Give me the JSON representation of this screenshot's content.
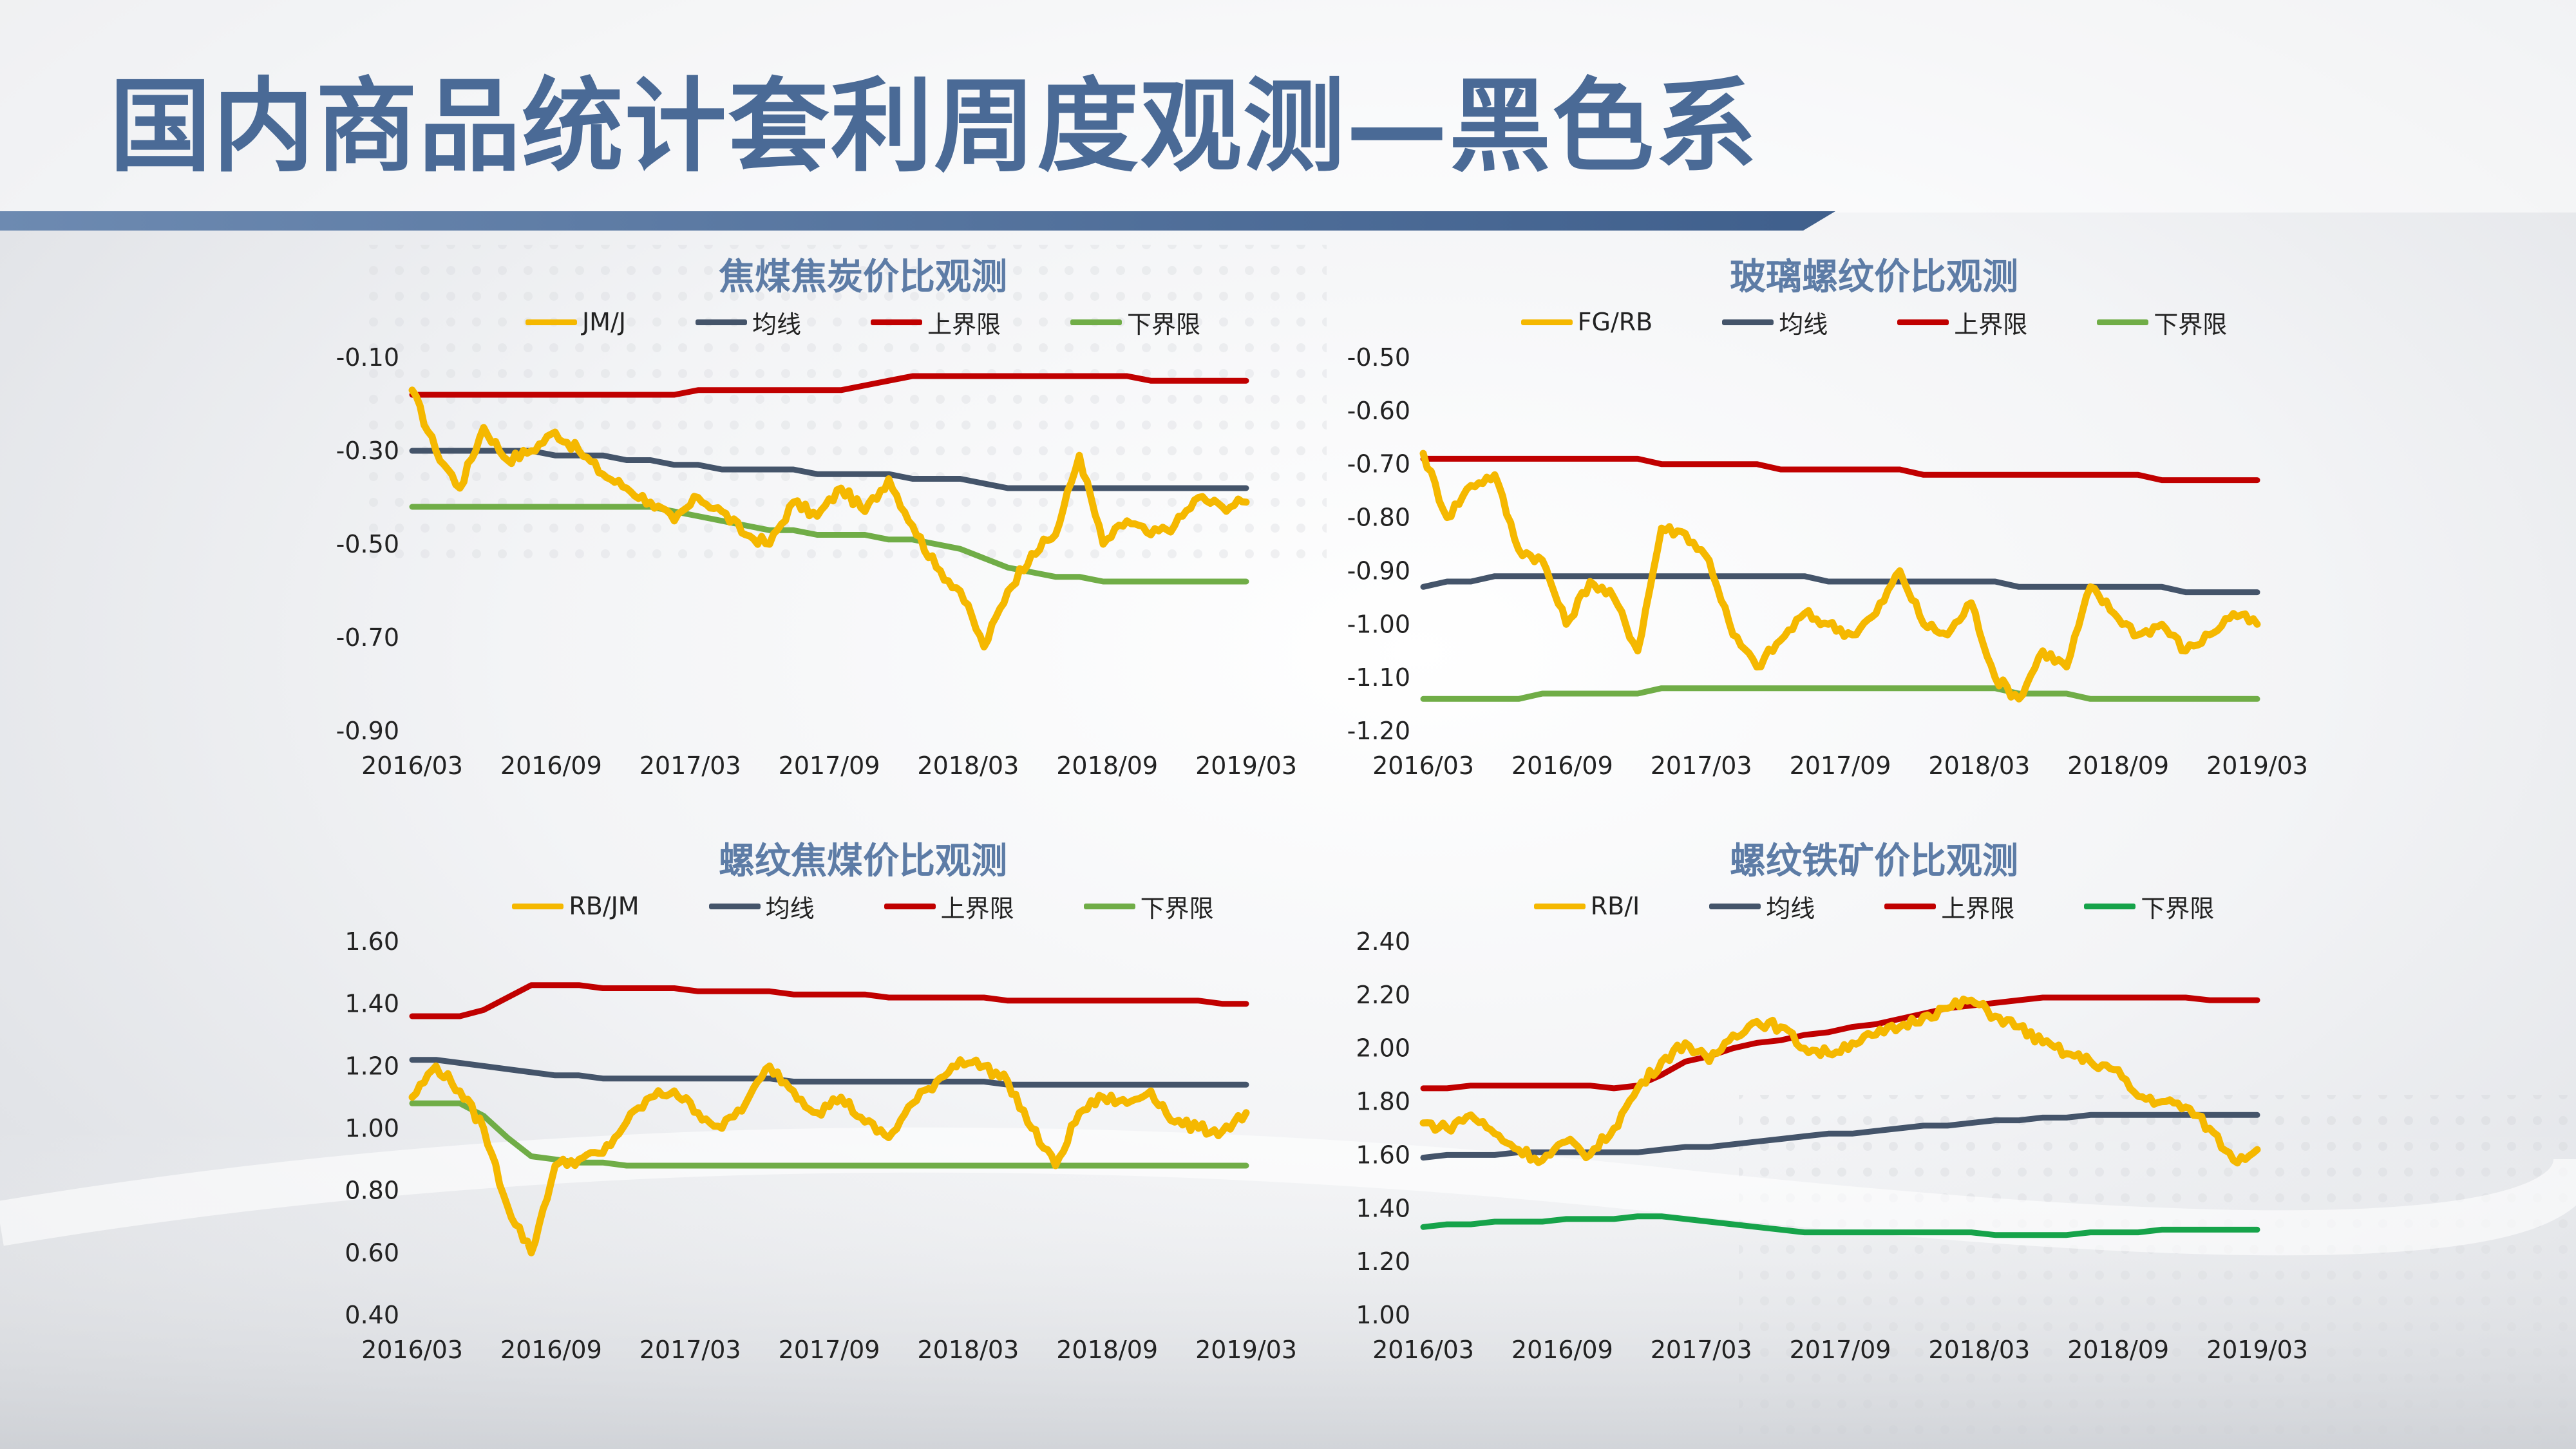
{
  "page": {
    "title": "国内商品统计套利周度观测—黑色系"
  },
  "colors": {
    "title": "#4a6a96",
    "chart_title": "#5d7ca6",
    "title_bar": "#4a6a96",
    "ratio": "#f5b800",
    "mean": "#44546a",
    "upper": "#c00000",
    "lower": "#70ad47",
    "lower_alt": "#16a34a"
  },
  "chart_data": [
    {
      "type": "line",
      "title": "焦煤焦炭价比观测",
      "x_labels": [
        "2016/03",
        "2016/09",
        "2017/03",
        "2017/09",
        "2018/03",
        "2018/09",
        "2019/03"
      ],
      "y_ticks": [
        "-0.10",
        "-0.30",
        "-0.50",
        "-0.70",
        "-0.90"
      ],
      "ylim": [
        -0.9,
        -0.1
      ],
      "legend_position": "top",
      "series": [
        {
          "name": "JM/J",
          "role": "ratio",
          "values": [
            -0.17,
            -0.3,
            -0.38,
            -0.25,
            -0.32,
            -0.3,
            -0.26,
            -0.3,
            -0.35,
            -0.38,
            -0.41,
            -0.45,
            -0.4,
            -0.43,
            -0.48,
            -0.5,
            -0.41,
            -0.44,
            -0.38,
            -0.43,
            -0.36,
            -0.46,
            -0.55,
            -0.6,
            -0.72,
            -0.6,
            -0.52,
            -0.48,
            -0.31,
            -0.5,
            -0.45,
            -0.48,
            -0.46,
            -0.4,
            -0.42,
            -0.41
          ]
        },
        {
          "name": "均线",
          "role": "mean",
          "values": [
            -0.3,
            -0.3,
            -0.3,
            -0.3,
            -0.3,
            -0.3,
            -0.31,
            -0.31,
            -0.31,
            -0.32,
            -0.32,
            -0.33,
            -0.33,
            -0.34,
            -0.34,
            -0.34,
            -0.34,
            -0.35,
            -0.35,
            -0.35,
            -0.35,
            -0.36,
            -0.36,
            -0.36,
            -0.37,
            -0.38,
            -0.38,
            -0.38,
            -0.38,
            -0.38,
            -0.38,
            -0.38,
            -0.38,
            -0.38,
            -0.38,
            -0.38
          ]
        },
        {
          "name": "上界限",
          "role": "upper",
          "values": [
            -0.18,
            -0.18,
            -0.18,
            -0.18,
            -0.18,
            -0.18,
            -0.18,
            -0.18,
            -0.18,
            -0.18,
            -0.18,
            -0.18,
            -0.17,
            -0.17,
            -0.17,
            -0.17,
            -0.17,
            -0.17,
            -0.17,
            -0.16,
            -0.15,
            -0.14,
            -0.14,
            -0.14,
            -0.14,
            -0.14,
            -0.14,
            -0.14,
            -0.14,
            -0.14,
            -0.14,
            -0.15,
            -0.15,
            -0.15,
            -0.15,
            -0.15
          ]
        },
        {
          "name": "下界限",
          "role": "lower",
          "values": [
            -0.42,
            -0.42,
            -0.42,
            -0.42,
            -0.42,
            -0.42,
            -0.42,
            -0.42,
            -0.42,
            -0.42,
            -0.42,
            -0.43,
            -0.44,
            -0.45,
            -0.46,
            -0.47,
            -0.47,
            -0.48,
            -0.48,
            -0.48,
            -0.49,
            -0.49,
            -0.5,
            -0.51,
            -0.53,
            -0.55,
            -0.56,
            -0.57,
            -0.57,
            -0.58,
            -0.58,
            -0.58,
            -0.58,
            -0.58,
            -0.58,
            -0.58
          ]
        }
      ]
    },
    {
      "type": "line",
      "title": "玻璃螺纹价比观测",
      "x_labels": [
        "2016/03",
        "2016/09",
        "2017/03",
        "2017/09",
        "2018/03",
        "2018/09",
        "2019/03"
      ],
      "y_ticks": [
        "-0.50",
        "-0.60",
        "-0.70",
        "-0.80",
        "-0.90",
        "-1.00",
        "-1.10",
        "-1.20"
      ],
      "ylim": [
        -1.2,
        -0.5
      ],
      "legend_position": "top",
      "series": [
        {
          "name": "FG/RB",
          "role": "ratio",
          "values": [
            -0.68,
            -0.8,
            -0.74,
            -0.72,
            -0.86,
            -0.88,
            -1.0,
            -0.92,
            -0.95,
            -1.05,
            -0.82,
            -0.83,
            -0.88,
            -1.02,
            -1.08,
            -1.03,
            -0.98,
            -1.0,
            -1.02,
            -0.98,
            -0.9,
            -1.0,
            -1.02,
            -0.96,
            -1.1,
            -1.14,
            -1.05,
            -1.08,
            -0.93,
            -0.98,
            -1.02,
            -1.0,
            -1.05,
            -1.02,
            -0.98,
            -1.0
          ]
        },
        {
          "name": "均线",
          "role": "mean",
          "values": [
            -0.93,
            -0.92,
            -0.92,
            -0.91,
            -0.91,
            -0.91,
            -0.91,
            -0.91,
            -0.91,
            -0.91,
            -0.91,
            -0.91,
            -0.91,
            -0.91,
            -0.91,
            -0.91,
            -0.91,
            -0.92,
            -0.92,
            -0.92,
            -0.92,
            -0.92,
            -0.92,
            -0.92,
            -0.92,
            -0.93,
            -0.93,
            -0.93,
            -0.93,
            -0.93,
            -0.93,
            -0.93,
            -0.94,
            -0.94,
            -0.94,
            -0.94
          ]
        },
        {
          "name": "上界限",
          "role": "upper",
          "values": [
            -0.69,
            -0.69,
            -0.69,
            -0.69,
            -0.69,
            -0.69,
            -0.69,
            -0.69,
            -0.69,
            -0.69,
            -0.7,
            -0.7,
            -0.7,
            -0.7,
            -0.7,
            -0.71,
            -0.71,
            -0.71,
            -0.71,
            -0.71,
            -0.71,
            -0.72,
            -0.72,
            -0.72,
            -0.72,
            -0.72,
            -0.72,
            -0.72,
            -0.72,
            -0.72,
            -0.72,
            -0.73,
            -0.73,
            -0.73,
            -0.73,
            -0.73
          ]
        },
        {
          "name": "下界限",
          "role": "lower",
          "values": [
            -1.14,
            -1.14,
            -1.14,
            -1.14,
            -1.14,
            -1.13,
            -1.13,
            -1.13,
            -1.13,
            -1.13,
            -1.12,
            -1.12,
            -1.12,
            -1.12,
            -1.12,
            -1.12,
            -1.12,
            -1.12,
            -1.12,
            -1.12,
            -1.12,
            -1.12,
            -1.12,
            -1.12,
            -1.12,
            -1.13,
            -1.13,
            -1.13,
            -1.14,
            -1.14,
            -1.14,
            -1.14,
            -1.14,
            -1.14,
            -1.14,
            -1.14
          ]
        }
      ]
    },
    {
      "type": "line",
      "title": "螺纹焦煤价比观测",
      "x_labels": [
        "2016/03",
        "2016/09",
        "2017/03",
        "2017/09",
        "2018/03",
        "2018/09",
        "2019/03"
      ],
      "y_ticks": [
        "1.60",
        "1.40",
        "1.20",
        "1.00",
        "0.80",
        "0.60",
        "0.40"
      ],
      "ylim": [
        0.4,
        1.6
      ],
      "legend_position": "top",
      "series": [
        {
          "name": "RB/JM",
          "role": "ratio",
          "values": [
            1.1,
            1.2,
            1.12,
            1.0,
            0.75,
            0.6,
            0.88,
            0.9,
            0.92,
            1.02,
            1.1,
            1.12,
            1.05,
            1.0,
            1.08,
            1.2,
            1.12,
            1.05,
            1.1,
            1.02,
            0.97,
            1.08,
            1.15,
            1.22,
            1.2,
            1.15,
            1.0,
            0.88,
            1.05,
            1.1,
            1.08,
            1.12,
            1.02,
            1.0,
            0.99,
            1.05
          ]
        },
        {
          "name": "均线",
          "role": "mean",
          "values": [
            1.22,
            1.22,
            1.21,
            1.2,
            1.19,
            1.18,
            1.17,
            1.17,
            1.16,
            1.16,
            1.16,
            1.16,
            1.16,
            1.16,
            1.16,
            1.16,
            1.15,
            1.15,
            1.15,
            1.15,
            1.15,
            1.15,
            1.15,
            1.15,
            1.15,
            1.14,
            1.14,
            1.14,
            1.14,
            1.14,
            1.14,
            1.14,
            1.14,
            1.14,
            1.14,
            1.14
          ]
        },
        {
          "name": "上界限",
          "role": "upper",
          "values": [
            1.36,
            1.36,
            1.36,
            1.38,
            1.42,
            1.46,
            1.46,
            1.46,
            1.45,
            1.45,
            1.45,
            1.45,
            1.44,
            1.44,
            1.44,
            1.44,
            1.43,
            1.43,
            1.43,
            1.43,
            1.42,
            1.42,
            1.42,
            1.42,
            1.42,
            1.41,
            1.41,
            1.41,
            1.41,
            1.41,
            1.41,
            1.41,
            1.41,
            1.41,
            1.4,
            1.4
          ]
        },
        {
          "name": "下界限",
          "role": "lower",
          "values": [
            1.08,
            1.08,
            1.08,
            1.04,
            0.97,
            0.91,
            0.9,
            0.89,
            0.89,
            0.88,
            0.88,
            0.88,
            0.88,
            0.88,
            0.88,
            0.88,
            0.88,
            0.88,
            0.88,
            0.88,
            0.88,
            0.88,
            0.88,
            0.88,
            0.88,
            0.88,
            0.88,
            0.88,
            0.88,
            0.88,
            0.88,
            0.88,
            0.88,
            0.88,
            0.88,
            0.88
          ]
        }
      ]
    },
    {
      "type": "line",
      "title": "螺纹铁矿价比观测",
      "x_labels": [
        "2016/03",
        "2016/09",
        "2017/03",
        "2017/09",
        "2018/03",
        "2018/09",
        "2019/03"
      ],
      "y_ticks": [
        "2.40",
        "2.20",
        "2.00",
        "1.80",
        "1.60",
        "1.40",
        "1.20",
        "1.00"
      ],
      "ylim": [
        1.0,
        2.4
      ],
      "legend_position": "top",
      "series": [
        {
          "name": "RB/I",
          "role": "ratio",
          "values": [
            1.72,
            1.7,
            1.75,
            1.68,
            1.62,
            1.58,
            1.65,
            1.6,
            1.7,
            1.85,
            1.95,
            2.02,
            1.95,
            2.05,
            2.1,
            2.08,
            2.0,
            1.98,
            2.02,
            2.05,
            2.08,
            2.12,
            2.15,
            2.18,
            2.12,
            2.08,
            2.02,
            1.98,
            1.95,
            1.92,
            1.82,
            1.8,
            1.78,
            1.7,
            1.58,
            1.62
          ]
        },
        {
          "name": "均线",
          "role": "mean",
          "values": [
            1.59,
            1.6,
            1.6,
            1.6,
            1.61,
            1.61,
            1.61,
            1.61,
            1.61,
            1.61,
            1.62,
            1.63,
            1.63,
            1.64,
            1.65,
            1.66,
            1.67,
            1.68,
            1.68,
            1.69,
            1.7,
            1.71,
            1.71,
            1.72,
            1.73,
            1.73,
            1.74,
            1.74,
            1.75,
            1.75,
            1.75,
            1.75,
            1.75,
            1.75,
            1.75,
            1.75
          ]
        },
        {
          "name": "上界限",
          "role": "upper",
          "values": [
            1.85,
            1.85,
            1.86,
            1.86,
            1.86,
            1.86,
            1.86,
            1.86,
            1.85,
            1.86,
            1.9,
            1.95,
            1.97,
            2.0,
            2.02,
            2.03,
            2.05,
            2.06,
            2.08,
            2.09,
            2.11,
            2.13,
            2.15,
            2.16,
            2.17,
            2.18,
            2.19,
            2.19,
            2.19,
            2.19,
            2.19,
            2.19,
            2.19,
            2.18,
            2.18,
            2.18
          ]
        },
        {
          "name": "下界限",
          "role": "lower_alt",
          "values": [
            1.33,
            1.34,
            1.34,
            1.35,
            1.35,
            1.35,
            1.36,
            1.36,
            1.36,
            1.37,
            1.37,
            1.36,
            1.35,
            1.34,
            1.33,
            1.32,
            1.31,
            1.31,
            1.31,
            1.31,
            1.31,
            1.31,
            1.31,
            1.31,
            1.3,
            1.3,
            1.3,
            1.3,
            1.31,
            1.31,
            1.31,
            1.32,
            1.32,
            1.32,
            1.32,
            1.32
          ]
        }
      ]
    }
  ]
}
